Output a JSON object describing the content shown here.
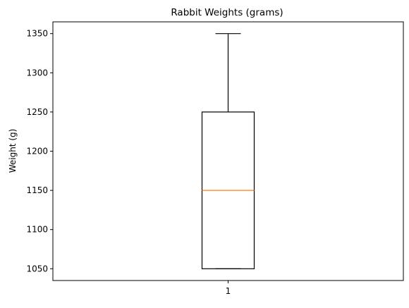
{
  "chart_data": {
    "type": "box",
    "title": "Rabbit Weights (grams)",
    "xlabel": "",
    "ylabel": "Weight (g)",
    "ylim": [
      1035,
      1365
    ],
    "categories": [
      "1"
    ],
    "yticks": [
      1050,
      1100,
      1150,
      1200,
      1250,
      1300,
      1350
    ],
    "boxes": [
      {
        "category": "1",
        "whisker_low": 1050,
        "q1": 1050,
        "median": 1150,
        "q3": 1250,
        "whisker_high": 1350
      }
    ],
    "grid": false,
    "colors": {
      "box": "#000000",
      "median": "#ff7f0e",
      "axes": "#000000"
    }
  }
}
